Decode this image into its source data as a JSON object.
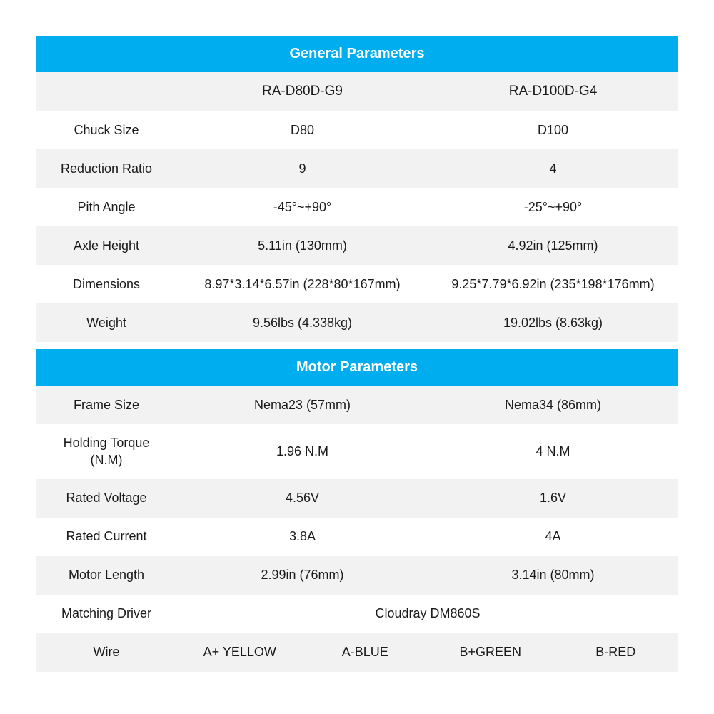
{
  "colors": {
    "header_bg": "#00aef0",
    "header_text": "#ffffff",
    "row_alt_bg": "#f2f2f2",
    "row_white_bg": "#ffffff",
    "text": "#1a1a1a"
  },
  "sections": {
    "general": {
      "title": "General Parameters",
      "model_header": {
        "label": "",
        "col1": "RA-D80D-G9",
        "col2": "RA-D100D-G4"
      },
      "rows": [
        {
          "label": "Chuck Size",
          "col1": "D80",
          "col2": "D100"
        },
        {
          "label": "Reduction Ratio",
          "col1": "9",
          "col2": "4"
        },
        {
          "label": "Pith Angle",
          "col1": "-45°~+90°",
          "col2": "-25°~+90°"
        },
        {
          "label": "Axle Height",
          "col1": "5.11in (130mm)",
          "col2": "4.92in (125mm)"
        },
        {
          "label": "Dimensions",
          "col1": "8.97*3.14*6.57in (228*80*167mm)",
          "col2": "9.25*7.79*6.92in (235*198*176mm)"
        },
        {
          "label": "Weight",
          "col1": "9.56lbs (4.338kg)",
          "col2": "19.02lbs (8.63kg)"
        }
      ]
    },
    "motor": {
      "title": "Motor Parameters",
      "rows": [
        {
          "label": "Frame Size",
          "col1": "Nema23 (57mm)",
          "col2": "Nema34 (86mm)"
        },
        {
          "label": "Holding Torque\n(N.M)",
          "col1": "1.96 N.M",
          "col2": "4  N.M"
        },
        {
          "label": "Rated Voltage",
          "col1": "4.56V",
          "col2": "1.6V"
        },
        {
          "label": "Rated Current",
          "col1": "3.8A",
          "col2": "4A"
        },
        {
          "label": "Motor Length",
          "col1": "2.99in (76mm)",
          "col2": "3.14in (80mm)"
        }
      ],
      "matching_driver": {
        "label": "Matching Driver",
        "value": "Cloudray DM860S"
      },
      "wire": {
        "label": "Wire",
        "values": [
          "A+ YELLOW",
          "A-BLUE",
          "B+GREEN",
          "B-RED"
        ]
      }
    }
  }
}
